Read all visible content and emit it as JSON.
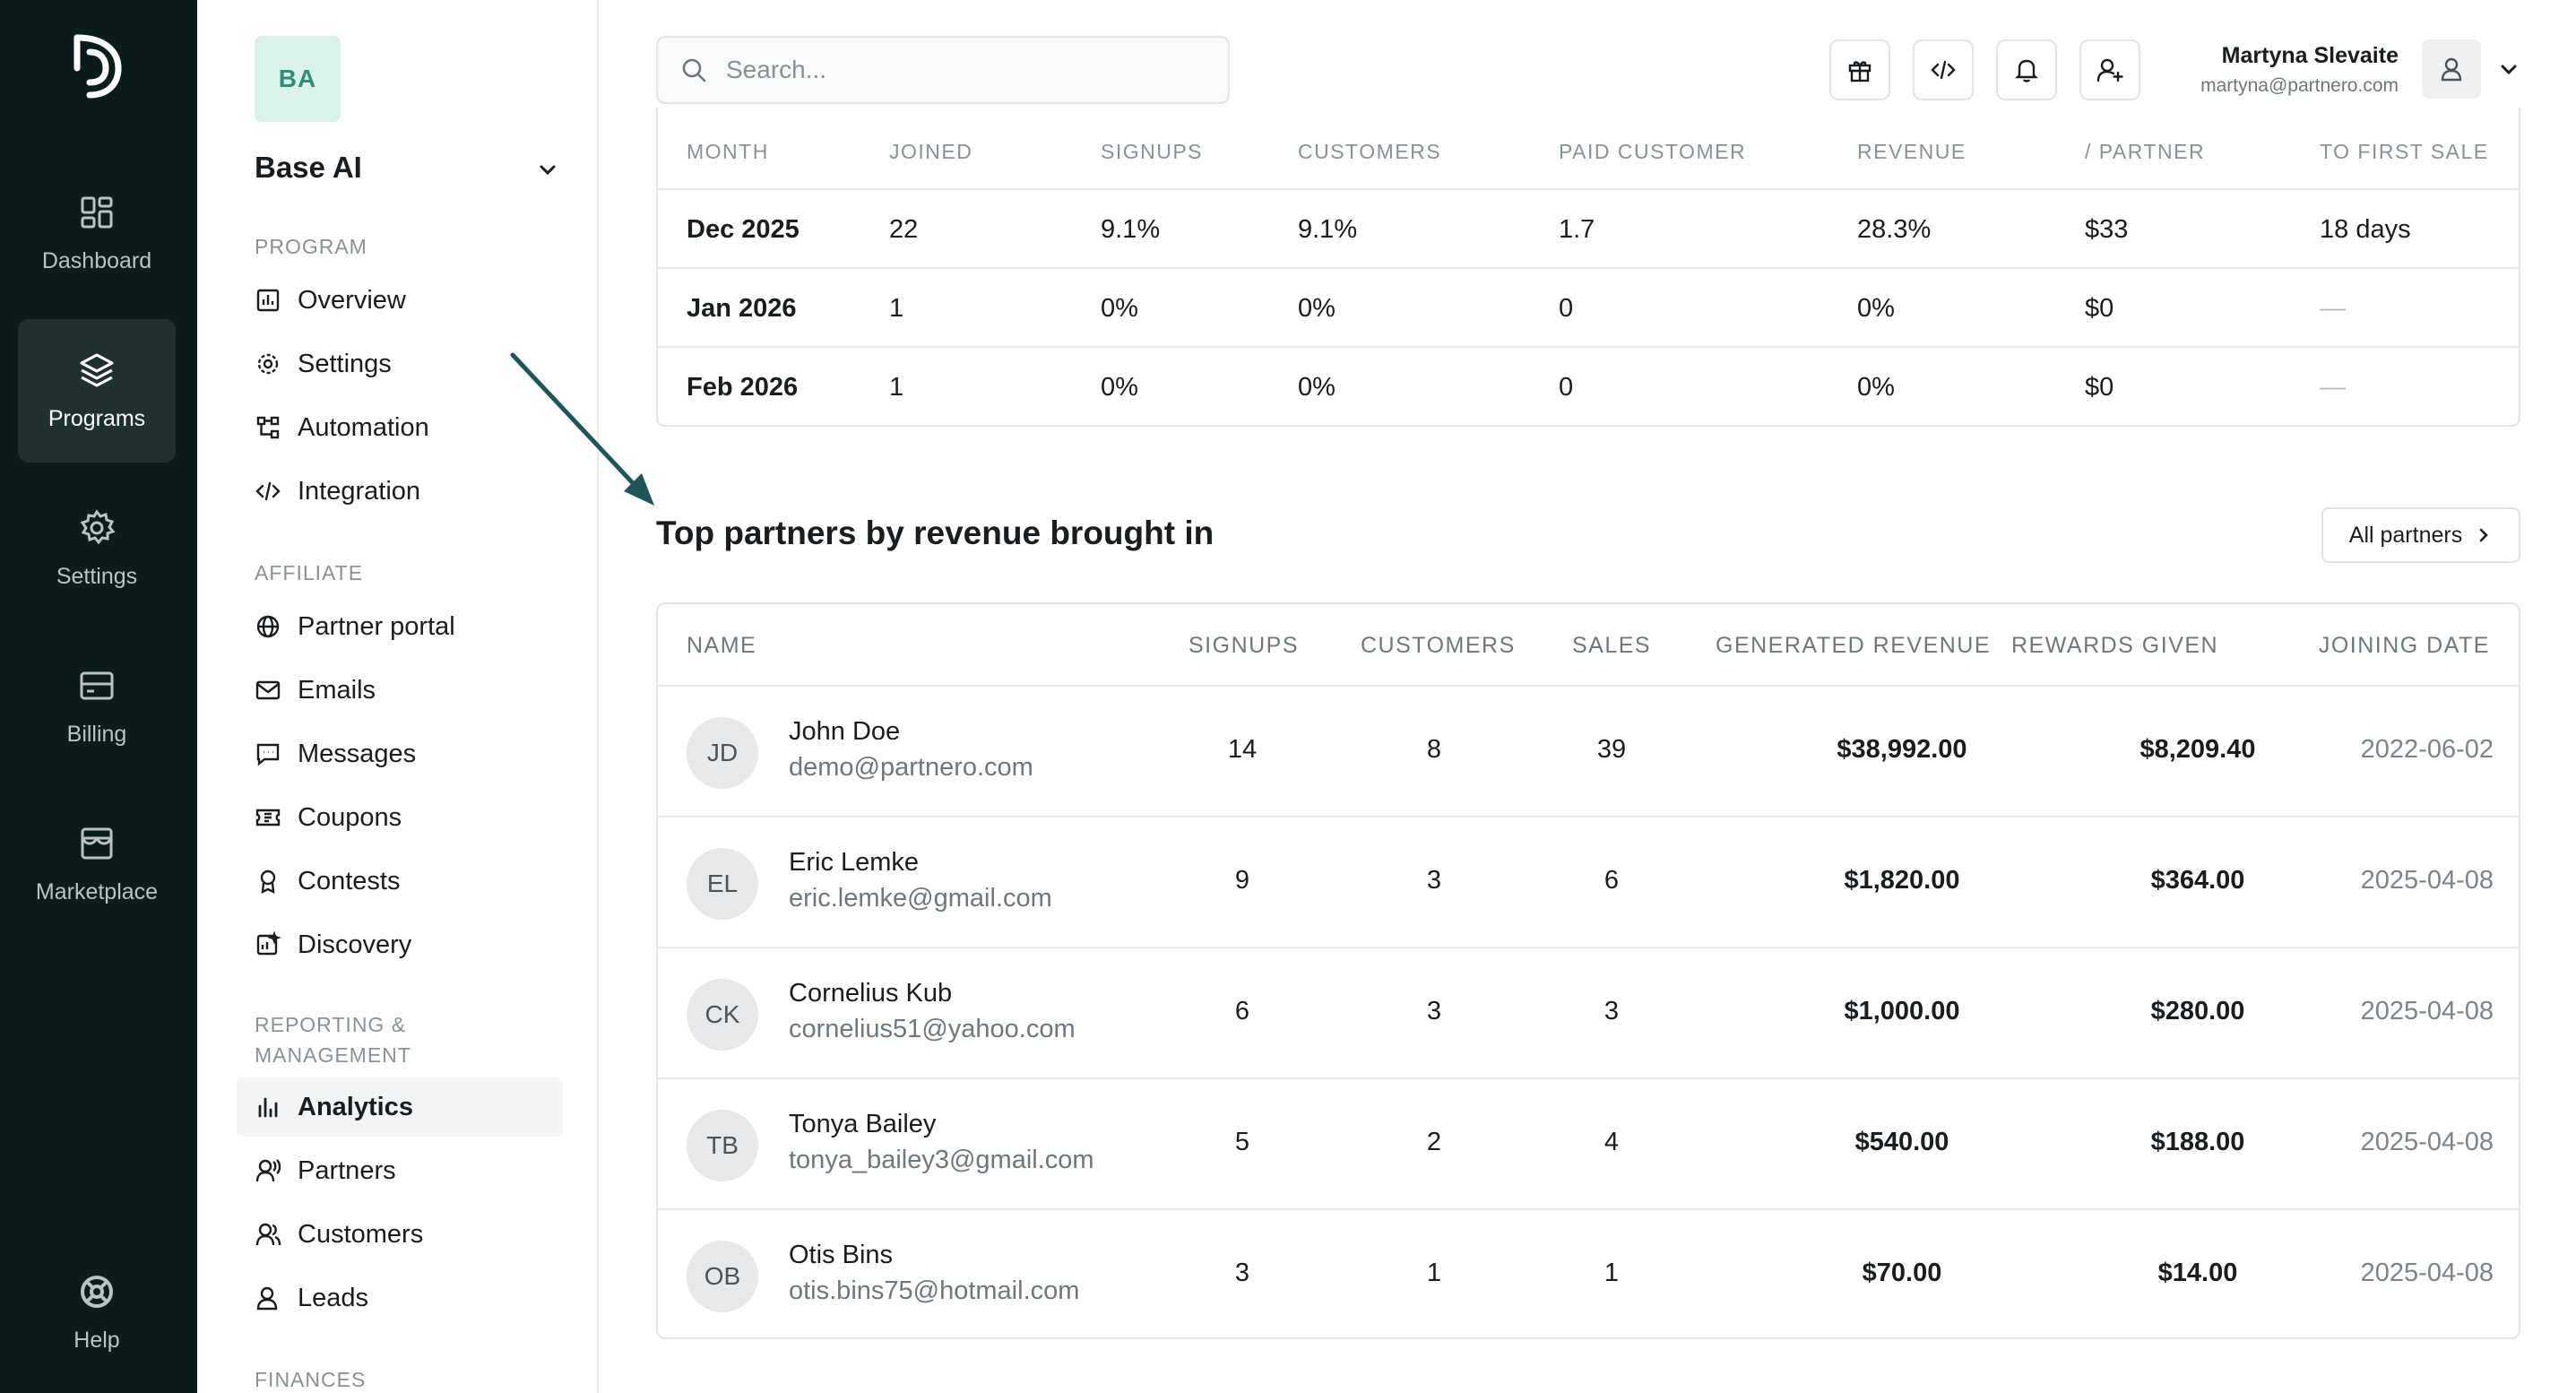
{
  "rail": {
    "items": [
      {
        "label": "Dashboard",
        "icon": "dashboard-icon"
      },
      {
        "label": "Programs",
        "icon": "layers-icon",
        "active": true
      },
      {
        "label": "Settings",
        "icon": "gear-icon"
      },
      {
        "label": "Billing",
        "icon": "billing-icon"
      },
      {
        "label": "Marketplace",
        "icon": "store-icon"
      }
    ],
    "help": "Help"
  },
  "workspace": {
    "initials": "BA",
    "name": "Base AI"
  },
  "sidebar": {
    "sections": [
      {
        "label": "PROGRAM",
        "items": [
          "Overview",
          "Settings",
          "Automation",
          "Integration"
        ]
      },
      {
        "label": "AFFILIATE",
        "items": [
          "Partner portal",
          "Emails",
          "Messages",
          "Coupons",
          "Contests",
          "Discovery"
        ]
      },
      {
        "label_line1": "REPORTING &",
        "label_line2": "MANAGEMENT",
        "items": [
          "Analytics",
          "Partners",
          "Customers",
          "Leads"
        ]
      },
      {
        "label": "FINANCES"
      }
    ],
    "active_item": "Analytics"
  },
  "topbar": {
    "search_placeholder": "Search...",
    "user_name": "Martyna Slevaite",
    "user_email": "martyna@partnero.com"
  },
  "monthly_table": {
    "headers": [
      "MONTH",
      "JOINED",
      "SIGNUPS",
      "CUSTOMERS",
      "PAID CUSTOMER",
      "REVENUE",
      "/ PARTNER",
      "TO FIRST SALE"
    ],
    "rows": [
      [
        "Dec 2025",
        "22",
        "9.1%",
        "9.1%",
        "1.7",
        "28.3%",
        "$33",
        "18 days"
      ],
      [
        "Jan 2026",
        "1",
        "0%",
        "0%",
        "0",
        "0%",
        "$0",
        "—"
      ],
      [
        "Feb 2026",
        "1",
        "0%",
        "0%",
        "0",
        "0%",
        "$0",
        "—"
      ]
    ]
  },
  "top_partners": {
    "title": "Top partners by revenue brought in",
    "all_button": "All partners",
    "headers": [
      "NAME",
      "SIGNUPS",
      "CUSTOMERS",
      "SALES",
      "GENERATED REVENUE",
      "REWARDS GIVEN",
      "JOINING DATE"
    ],
    "rows": [
      {
        "initials": "JD",
        "name": "John Doe",
        "email": "demo@partnero.com",
        "signups": "14",
        "customers": "8",
        "sales": "39",
        "revenue": "$38,992.00",
        "rewards": "$8,209.40",
        "date": "2022-06-02"
      },
      {
        "initials": "EL",
        "name": "Eric Lemke",
        "email": "eric.lemke@gmail.com",
        "signups": "9",
        "customers": "3",
        "sales": "6",
        "revenue": "$1,820.00",
        "rewards": "$364.00",
        "date": "2025-04-08"
      },
      {
        "initials": "CK",
        "name": "Cornelius Kub",
        "email": "cornelius51@yahoo.com",
        "signups": "6",
        "customers": "3",
        "sales": "3",
        "revenue": "$1,000.00",
        "rewards": "$280.00",
        "date": "2025-04-08"
      },
      {
        "initials": "TB",
        "name": "Tonya Bailey",
        "email": "tonya_bailey3@gmail.com",
        "signups": "5",
        "customers": "2",
        "sales": "4",
        "revenue": "$540.00",
        "rewards": "$188.00",
        "date": "2025-04-08"
      },
      {
        "initials": "OB",
        "name": "Otis Bins",
        "email": "otis.bins75@hotmail.com",
        "signups": "3",
        "customers": "1",
        "sales": "1",
        "revenue": "$70.00",
        "rewards": "$14.00",
        "date": "2025-04-08"
      }
    ]
  },
  "colors": {
    "rail_bg": "#0b1c1c",
    "accent": "#2f8f75",
    "arrow": "#1f5554"
  }
}
